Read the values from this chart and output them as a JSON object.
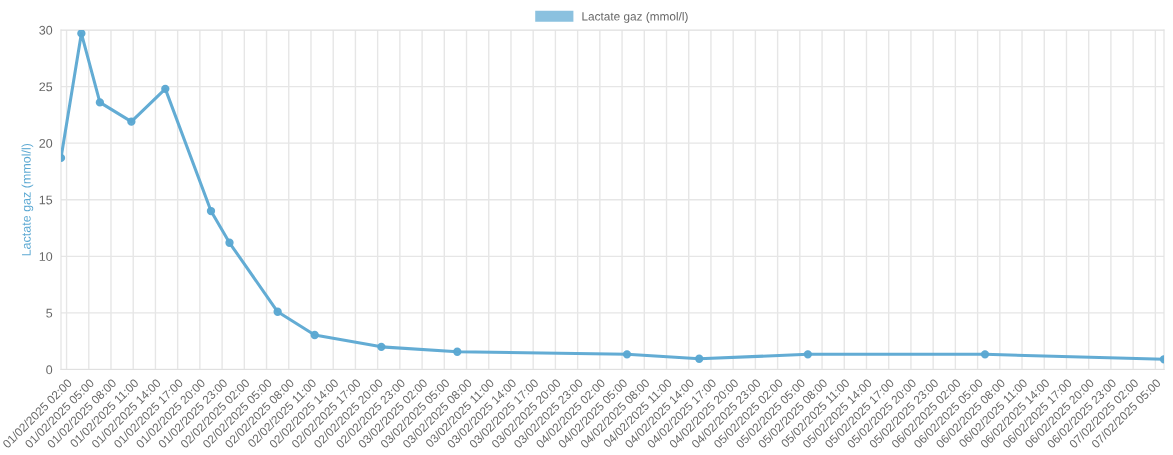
{
  "chart_data": {
    "type": "line",
    "ylabel": "Lactate gaz (mmol/l)",
    "x": [
      "2025-02-01T01:15",
      "2025-02-01T04:00",
      "2025-02-01T06:30",
      "2025-02-01T10:45",
      "2025-02-01T15:20",
      "2025-02-01T21:30",
      "2025-02-02T00:00",
      "2025-02-02T06:30",
      "2025-02-02T11:30",
      "2025-02-02T20:30",
      "2025-02-03T06:45",
      "2025-02-04T05:40",
      "2025-02-04T15:25",
      "2025-02-05T06:05",
      "2025-02-06T06:00",
      "2025-02-07T06:10"
    ],
    "series": [
      {
        "name": "Lactate gaz (mmol/l)",
        "color": "#5ba8d2",
        "values": [
          18.7,
          29.7,
          23.6,
          21.9,
          24.8,
          14.0,
          11.2,
          5.1,
          3.05,
          2.0,
          1.57,
          1.34,
          0.95,
          1.34,
          1.34,
          0.9
        ]
      }
    ],
    "xlim": [
      "2025-02-01T01:15",
      "2025-02-07T06:10"
    ],
    "xticks": [
      {
        "value": "2025-02-01T02:00",
        "label": "01/02/2025 02:00"
      },
      {
        "value": "2025-02-01T05:00",
        "label": "01/02/2025 05:00"
      },
      {
        "value": "2025-02-01T08:00",
        "label": "01/02/2025 08:00"
      },
      {
        "value": "2025-02-01T11:00",
        "label": "01/02/2025 11:00"
      },
      {
        "value": "2025-02-01T14:00",
        "label": "01/02/2025 14:00"
      },
      {
        "value": "2025-02-01T17:00",
        "label": "01/02/2025 17:00"
      },
      {
        "value": "2025-02-01T20:00",
        "label": "01/02/2025 20:00"
      },
      {
        "value": "2025-02-01T23:00",
        "label": "01/02/2025 23:00"
      },
      {
        "value": "2025-02-02T02:00",
        "label": "02/02/2025 02:00"
      },
      {
        "value": "2025-02-02T05:00",
        "label": "02/02/2025 05:00"
      },
      {
        "value": "2025-02-02T08:00",
        "label": "02/02/2025 08:00"
      },
      {
        "value": "2025-02-02T11:00",
        "label": "02/02/2025 11:00"
      },
      {
        "value": "2025-02-02T14:00",
        "label": "02/02/2025 14:00"
      },
      {
        "value": "2025-02-02T17:00",
        "label": "02/02/2025 17:00"
      },
      {
        "value": "2025-02-02T20:00",
        "label": "02/02/2025 20:00"
      },
      {
        "value": "2025-02-02T23:00",
        "label": "02/02/2025 23:00"
      },
      {
        "value": "2025-02-03T02:00",
        "label": "03/02/2025 02:00"
      },
      {
        "value": "2025-02-03T05:00",
        "label": "03/02/2025 05:00"
      },
      {
        "value": "2025-02-03T08:00",
        "label": "03/02/2025 08:00"
      },
      {
        "value": "2025-02-03T11:00",
        "label": "03/02/2025 11:00"
      },
      {
        "value": "2025-02-03T14:00",
        "label": "03/02/2025 14:00"
      },
      {
        "value": "2025-02-03T17:00",
        "label": "03/02/2025 17:00"
      },
      {
        "value": "2025-02-03T20:00",
        "label": "03/02/2025 20:00"
      },
      {
        "value": "2025-02-03T23:00",
        "label": "03/02/2025 23:00"
      },
      {
        "value": "2025-02-04T02:00",
        "label": "04/02/2025 02:00"
      },
      {
        "value": "2025-02-04T05:00",
        "label": "04/02/2025 05:00"
      },
      {
        "value": "2025-02-04T08:00",
        "label": "04/02/2025 08:00"
      },
      {
        "value": "2025-02-04T11:00",
        "label": "04/02/2025 11:00"
      },
      {
        "value": "2025-02-04T14:00",
        "label": "04/02/2025 14:00"
      },
      {
        "value": "2025-02-04T17:00",
        "label": "04/02/2025 17:00"
      },
      {
        "value": "2025-02-04T20:00",
        "label": "04/02/2025 20:00"
      },
      {
        "value": "2025-02-04T23:00",
        "label": "04/02/2025 23:00"
      },
      {
        "value": "2025-02-05T02:00",
        "label": "05/02/2025 02:00"
      },
      {
        "value": "2025-02-05T05:00",
        "label": "05/02/2025 05:00"
      },
      {
        "value": "2025-02-05T08:00",
        "label": "05/02/2025 08:00"
      },
      {
        "value": "2025-02-05T11:00",
        "label": "05/02/2025 11:00"
      },
      {
        "value": "2025-02-05T14:00",
        "label": "05/02/2025 14:00"
      },
      {
        "value": "2025-02-05T17:00",
        "label": "05/02/2025 17:00"
      },
      {
        "value": "2025-02-05T20:00",
        "label": "05/02/2025 20:00"
      },
      {
        "value": "2025-02-05T23:00",
        "label": "05/02/2025 23:00"
      },
      {
        "value": "2025-02-06T02:00",
        "label": "06/02/2025 02:00"
      },
      {
        "value": "2025-02-06T05:00",
        "label": "06/02/2025 05:00"
      },
      {
        "value": "2025-02-06T08:00",
        "label": "06/02/2025 08:00"
      },
      {
        "value": "2025-02-06T11:00",
        "label": "06/02/2025 11:00"
      },
      {
        "value": "2025-02-06T14:00",
        "label": "06/02/2025 14:00"
      },
      {
        "value": "2025-02-06T17:00",
        "label": "06/02/2025 17:00"
      },
      {
        "value": "2025-02-06T20:00",
        "label": "06/02/2025 20:00"
      },
      {
        "value": "2025-02-06T23:00",
        "label": "06/02/2025 23:00"
      },
      {
        "value": "2025-02-07T02:00",
        "label": "07/02/2025 02:00"
      },
      {
        "value": "2025-02-07T05:00",
        "label": "07/02/2025 05:00"
      }
    ],
    "ylim": [
      0,
      30
    ],
    "yticks": [
      0,
      5,
      10,
      15,
      20,
      25,
      30
    ],
    "grid": true,
    "legend": "top",
    "marker": "circle",
    "line_style": "solid"
  }
}
